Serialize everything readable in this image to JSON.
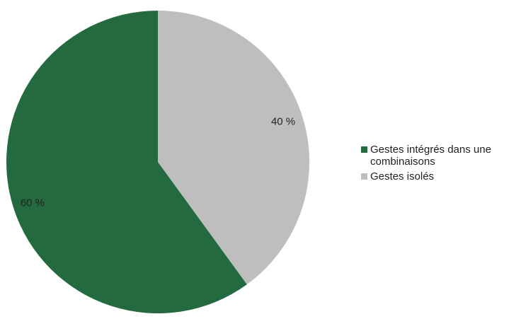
{
  "chart_data": {
    "type": "pie",
    "title": "",
    "start_angle_deg": 0,
    "direction": "clockwise",
    "legend_position": "right",
    "slices": [
      {
        "label": "Gestes isolés",
        "value": 40,
        "value_label": "40 %",
        "color": "#bebebe"
      },
      {
        "label": "Gestes intégrés dans une combinaisons",
        "value": 60,
        "value_label": "60 %",
        "color": "#236b3e"
      }
    ],
    "legend": [
      {
        "label": "Gestes intégrés dans une combinaisons",
        "color": "#236b3e"
      },
      {
        "label": "Gestes isolés",
        "color": "#bebebe"
      }
    ]
  }
}
